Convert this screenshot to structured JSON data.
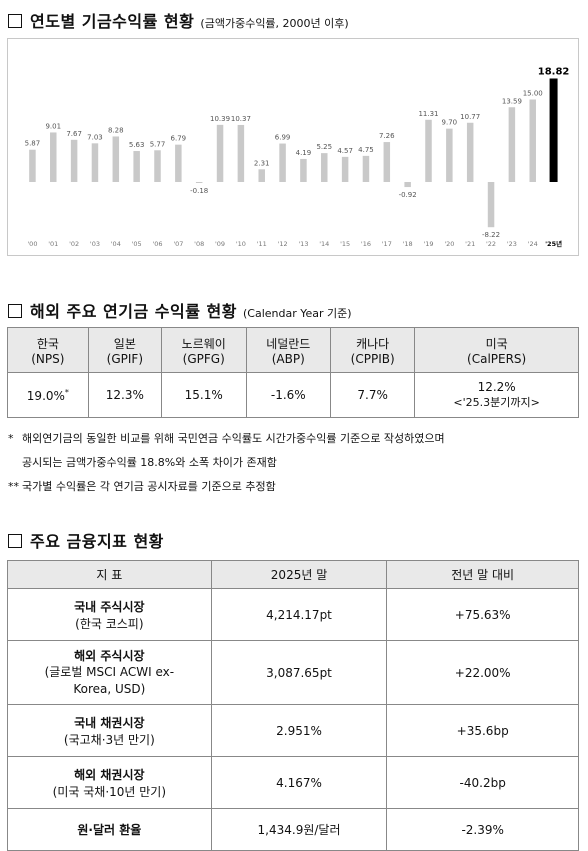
{
  "section1": {
    "title": "연도별 기금수익률 현황",
    "subtitle": "(금액가중수익률, 2000년 이후)"
  },
  "chart_data": {
    "type": "bar",
    "categories": [
      "'00",
      "'01",
      "'02",
      "'03",
      "'04",
      "'05",
      "'06",
      "'07",
      "'08",
      "'09",
      "'10",
      "'11",
      "'12",
      "'13",
      "'14",
      "'15",
      "'16",
      "'17",
      "'18",
      "'19",
      "'20",
      "'21",
      "'22",
      "'23",
      "'24",
      "'25년"
    ],
    "values": [
      5.87,
      9.01,
      7.67,
      7.03,
      8.28,
      5.63,
      5.77,
      6.79,
      -0.18,
      10.39,
      10.37,
      2.31,
      6.99,
      4.19,
      5.25,
      4.57,
      4.75,
      7.26,
      -0.92,
      11.31,
      9.7,
      10.77,
      -8.22,
      13.59,
      15.0,
      18.82
    ],
    "value_labels": [
      "5.87",
      "9.01",
      "7.67",
      "7.03",
      "8.28",
      "5.63",
      "5.77",
      "6.79",
      "-0.18",
      "10.39",
      "10.37",
      "2.31",
      "6.99",
      "4.19",
      "5.25",
      "4.57",
      "4.75",
      "7.26",
      "-0.92",
      "11.31",
      "9.70",
      "10.77",
      "-8.22",
      "13.59",
      "15.00",
      "18.82"
    ],
    "title": "",
    "xlabel": "",
    "ylabel": "",
    "ylim": [
      -10,
      20
    ],
    "grid": false,
    "highlight_index": 25,
    "colors": {
      "bar": "#c9c9c9",
      "highlight": "#000000",
      "text": "#555555"
    }
  },
  "section2": {
    "title": "해외 주요 연기금 수익률 현황",
    "subtitle": "(Calendar Year 기준)",
    "headers": [
      {
        "name": "한국",
        "sub": "(NPS)"
      },
      {
        "name": "일본",
        "sub": "(GPIF)"
      },
      {
        "name": "노르웨이",
        "sub": "(GPFG)"
      },
      {
        "name": "네덜란드",
        "sub": "(ABP)"
      },
      {
        "name": "캐나다",
        "sub": "(CPPIB)"
      },
      {
        "name": "미국",
        "sub": "(CalPERS)"
      }
    ],
    "values": [
      {
        "value": "19.0%",
        "note": "*"
      },
      {
        "value": "12.3%",
        "note": ""
      },
      {
        "value": "15.1%",
        "note": ""
      },
      {
        "value": "-1.6%",
        "note": ""
      },
      {
        "value": "7.7%",
        "note": ""
      },
      {
        "value": "12.2%",
        "note": "<'25.3분기까지>"
      }
    ],
    "notes": [
      {
        "mark": "*",
        "line1": "해외연기금의 동일한 비교를 위해 국민연금 수익률도 시간가중수익률 기준으로 작성하였으며",
        "line2": "공시되는 금액가중수익률 18.8%와 소폭 차이가 존재함"
      },
      {
        "mark": "**",
        "line1": "국가별 수익률은 각 연기금 공시자료를 기준으로 추정함",
        "line2": ""
      }
    ]
  },
  "section3": {
    "title": "주요 금융지표 현황",
    "headers": [
      "지 표",
      "2025년 말",
      "전년 말 대비"
    ],
    "rows": [
      {
        "label": "국내 주식시장",
        "sub": "(한국 코스피)",
        "value": "4,214.17pt",
        "change": "+75.63%"
      },
      {
        "label": "해외 주식시장",
        "sub": "(글로벌 MSCI ACWI ex-Korea, USD)",
        "value": "3,087.65pt",
        "change": "+22.00%"
      },
      {
        "label": "국내 채권시장",
        "sub": "(국고채·3년 만기)",
        "value": "2.951%",
        "change": "+35.6bp"
      },
      {
        "label": "해외 채권시장",
        "sub": "(미국 국채·10년 만기)",
        "value": "4.167%",
        "change": "-40.2bp"
      },
      {
        "label": "원·달러 환율",
        "sub": "",
        "value": "1,434.9원/달러",
        "change": "-2.39%"
      }
    ]
  }
}
